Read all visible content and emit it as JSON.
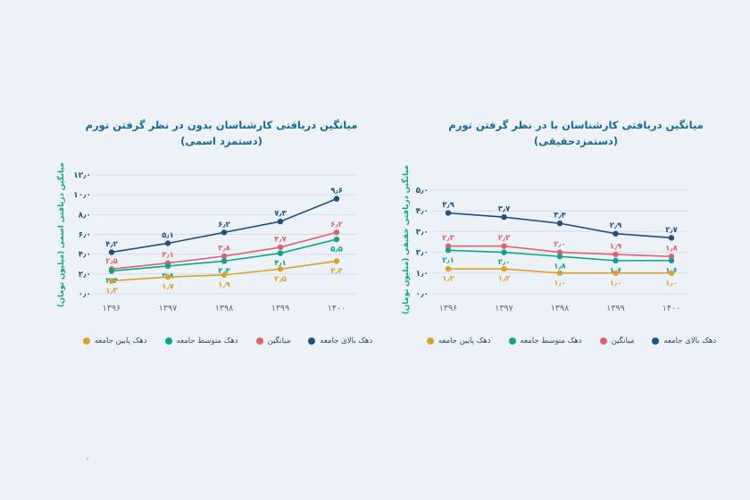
{
  "page": {
    "background": "#edf2f9",
    "decorative_mark": "،"
  },
  "legend": {
    "items": [
      {
        "label": "دهک بالای جامعه",
        "color": "#1c5181"
      },
      {
        "label": "میانگین",
        "color": "#e0606b"
      },
      {
        "label": "دهک متوسط جامعه",
        "color": "#07a78c"
      },
      {
        "label": "دهک پایین جامعه",
        "color": "#dba22a"
      }
    ]
  },
  "chart_data": [
    {
      "type": "line",
      "title_line1": "میانگین دریافتی کارشناسان بدون در نظر گرفتن تورم",
      "title_line2": "(دستمزد اسمی)",
      "ylabel": "میانگین دریافتی اسمی (میلیون تومان)",
      "xlabel": "",
      "categories": [
        "۱۳۹۶",
        "۱۳۹۷",
        "۱۳۹۸",
        "۱۳۹۹",
        "۱۴۰۰"
      ],
      "ylim": [
        0,
        12
      ],
      "ytick_step": 2,
      "grid": "horizontal",
      "legend_position": "bottom",
      "series": [
        {
          "name": "دهک بالای جامعه",
          "color": "#1c5181",
          "values": [
            4.2,
            5.1,
            6.2,
            7.3,
            9.6
          ],
          "label_position": "above"
        },
        {
          "name": "میانگین",
          "color": "#e0606b",
          "values": [
            2.5,
            3.1,
            3.8,
            4.7,
            6.2
          ],
          "label_position": "above"
        },
        {
          "name": "دهک متوسط جامعه",
          "color": "#07a78c",
          "values": [
            2.3,
            2.8,
            3.3,
            4.1,
            5.5
          ],
          "label_position": "below"
        },
        {
          "name": "دهک پایین جامعه",
          "color": "#dba22a",
          "values": [
            1.3,
            1.7,
            1.9,
            2.5,
            3.3
          ],
          "label_position": "below"
        }
      ]
    },
    {
      "type": "line",
      "title_line1": "میانگین دریافتی کارشناسان با در نظر گرفتن تورم",
      "title_line2": "(دستمزدحقیقی)",
      "ylabel": "میانگین دریافتی حقیقی (میلیون تومان)",
      "xlabel": "",
      "categories": [
        "۱۳۹۶",
        "۱۳۹۷",
        "۱۳۹۸",
        "۱۳۹۹",
        "۱۴۰۰"
      ],
      "ylim": [
        0,
        5
      ],
      "ytick_step": 1,
      "grid": "horizontal",
      "legend_position": "bottom",
      "series": [
        {
          "name": "دهک بالای جامعه",
          "color": "#1c5181",
          "values": [
            3.9,
            3.7,
            3.4,
            2.9,
            2.7
          ],
          "label_position": "above"
        },
        {
          "name": "میانگین",
          "color": "#e0606b",
          "values": [
            2.3,
            2.3,
            2.0,
            1.9,
            1.8
          ],
          "label_position": "above"
        },
        {
          "name": "دهک متوسط جامعه",
          "color": "#07a78c",
          "values": [
            2.1,
            2.0,
            1.8,
            1.6,
            1.6
          ],
          "label_position": "below"
        },
        {
          "name": "دهک پایین جامعه",
          "color": "#dba22a",
          "values": [
            1.2,
            1.2,
            1.0,
            1.0,
            1.0
          ],
          "label_position": "below"
        }
      ]
    }
  ]
}
